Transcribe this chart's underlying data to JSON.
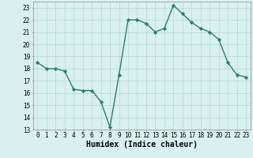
{
  "x": [
    0,
    1,
    2,
    3,
    4,
    5,
    6,
    7,
    8,
    9,
    10,
    11,
    12,
    13,
    14,
    15,
    16,
    17,
    18,
    19,
    20,
    21,
    22,
    23
  ],
  "y": [
    18.5,
    18.0,
    18.0,
    17.8,
    16.3,
    16.2,
    16.2,
    15.3,
    13.2,
    17.5,
    22.0,
    22.0,
    21.7,
    21.0,
    21.3,
    23.2,
    22.5,
    21.8,
    21.3,
    21.0,
    20.4,
    18.5,
    17.5,
    17.3
  ],
  "line_color": "#2e7d6e",
  "marker": "D",
  "marker_size": 2.2,
  "bg_color": "#d8f0ee",
  "grid_color": "#b8d8d4",
  "xlim": [
    -0.5,
    23.5
  ],
  "ylim": [
    13,
    23.5
  ],
  "yticks": [
    13,
    14,
    15,
    16,
    17,
    18,
    19,
    20,
    21,
    22,
    23
  ],
  "xticks": [
    0,
    1,
    2,
    3,
    4,
    5,
    6,
    7,
    8,
    9,
    10,
    11,
    12,
    13,
    14,
    15,
    16,
    17,
    18,
    19,
    20,
    21,
    22,
    23
  ],
  "xlabel": "Humidex (Indice chaleur)",
  "xlabel_fontsize": 7,
  "tick_fontsize": 5.5,
  "line_width": 1.0
}
